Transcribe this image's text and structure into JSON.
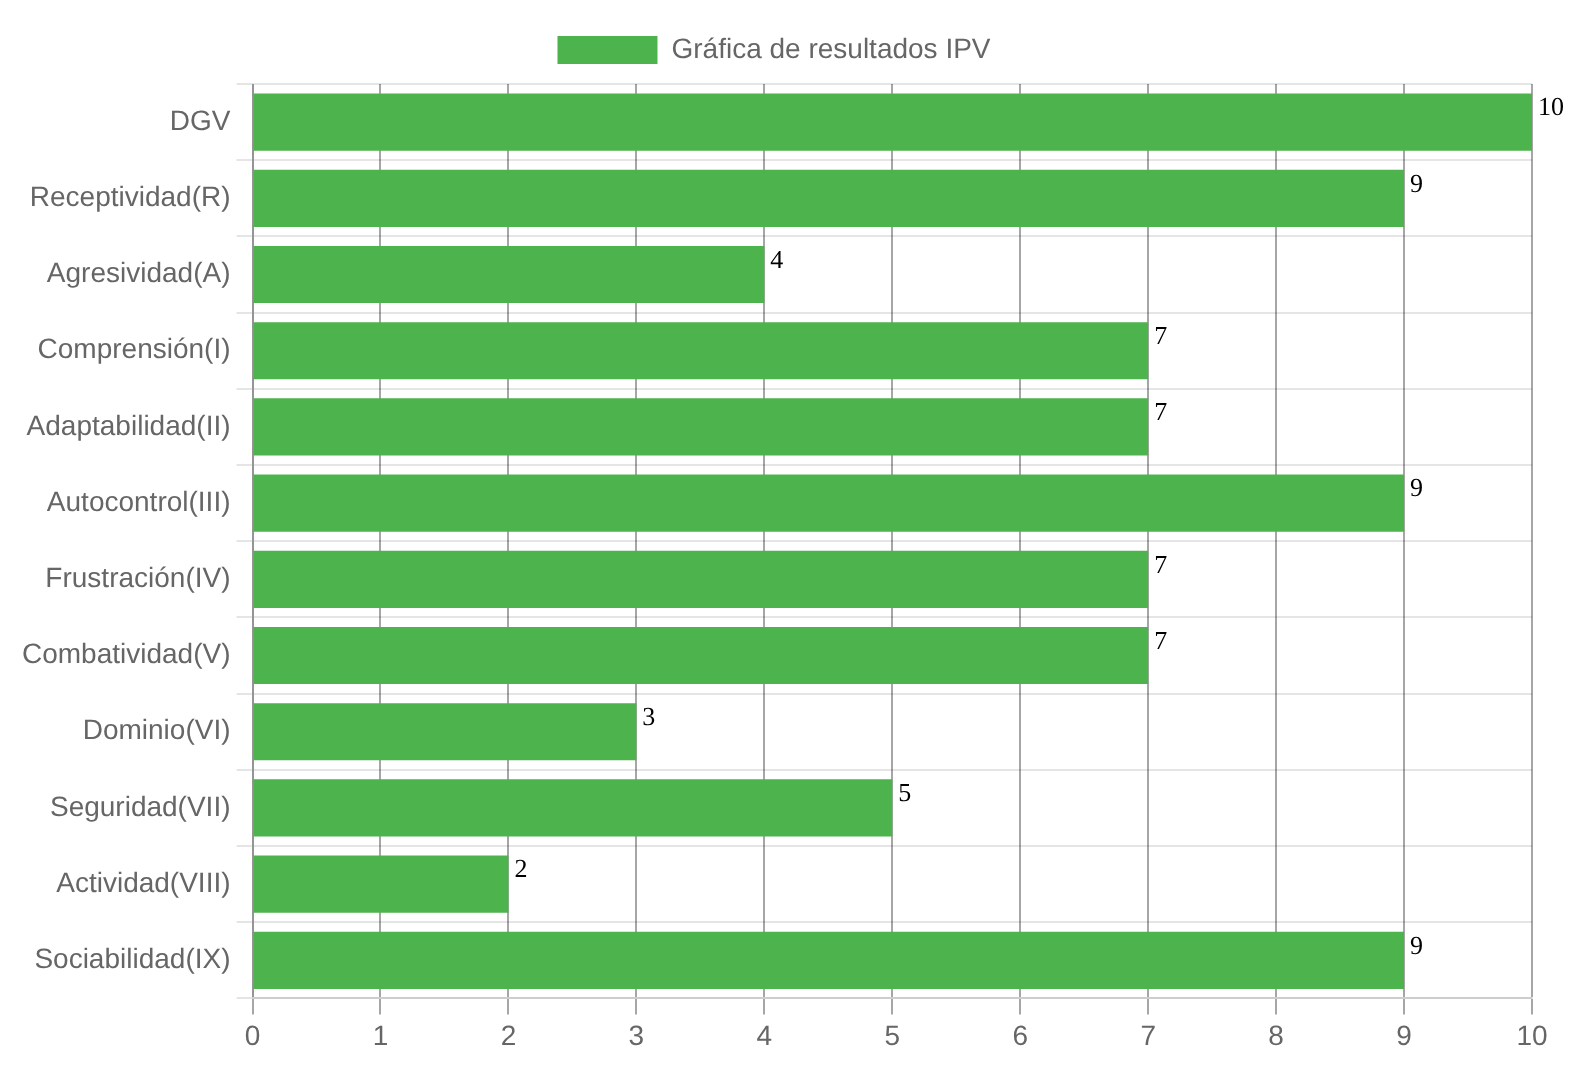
{
  "chart_data": {
    "type": "bar",
    "orientation": "horizontal",
    "legend": "top",
    "grid": true,
    "data_labels": true,
    "categories": [
      "DGV",
      "Receptividad(R)",
      "Agresividad(A)",
      "Comprensión(I)",
      "Adaptabilidad(II)",
      "Autocontrol(III)",
      "Frustración(IV)",
      "Combatividad(V)",
      "Dominio(VI)",
      "Seguridad(VII)",
      "Actividad(VIII)",
      "Sociabilidad(IX)"
    ],
    "series": [
      {
        "name": "Gráfica de resultados IPV",
        "color": "#4db34d",
        "values": [
          10,
          9,
          4,
          7,
          7,
          9,
          7,
          7,
          3,
          5,
          2,
          9
        ]
      }
    ],
    "xlim": [
      0,
      10
    ],
    "xticks": [
      0,
      1,
      2,
      3,
      4,
      5,
      6,
      7,
      8,
      9,
      10
    ]
  }
}
